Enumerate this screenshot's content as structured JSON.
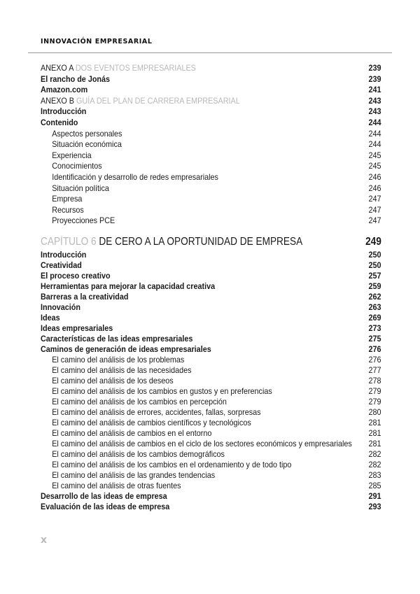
{
  "header": {
    "running_title": "INNOVACIÓN EMPRESARIAL"
  },
  "annexes": [
    {
      "prefix": "ANEXO A",
      "title": "DOS EVENTOS EMPRESARIALES",
      "page": "239"
    },
    {
      "prefix": "ANEXO B",
      "title": "GUÍA DEL PLAN DE CARRERA EMPRESARIAL",
      "page": "243"
    }
  ],
  "annex_a_entries": [
    {
      "label": "El rancho de Jonás",
      "page": "239",
      "level": 1
    },
    {
      "label": "Amazon.com",
      "page": "241",
      "level": 1
    }
  ],
  "annex_b_entries": [
    {
      "label": "Introducción",
      "page": "243",
      "level": 1
    },
    {
      "label": "Contenido",
      "page": "244",
      "level": 1
    },
    {
      "label": "Aspectos personales",
      "page": "244",
      "level": 2
    },
    {
      "label": "Situación económica",
      "page": "244",
      "level": 2
    },
    {
      "label": "Experiencia",
      "page": "245",
      "level": 2
    },
    {
      "label": "Conocimientos",
      "page": "245",
      "level": 2
    },
    {
      "label": "Identificación y desarrollo de redes empresariales",
      "page": "246",
      "level": 2
    },
    {
      "label": "Situación política",
      "page": "246",
      "level": 2
    },
    {
      "label": "Empresa",
      "page": "247",
      "level": 2
    },
    {
      "label": "Recursos",
      "page": "247",
      "level": 2
    },
    {
      "label": "Proyecciones PCE",
      "page": "247",
      "level": 2
    }
  ],
  "chapter": {
    "prefix": "CAPÍTULO 6",
    "title": "DE CERO A LA OPORTUNIDAD DE EMPRESA",
    "page": "249"
  },
  "chapter_entries": [
    {
      "label": "Introducción",
      "page": "250",
      "level": 1
    },
    {
      "label": "Creatividad",
      "page": "250",
      "level": 1
    },
    {
      "label": "El proceso creativo",
      "page": "257",
      "level": 1
    },
    {
      "label": "Herramientas para mejorar la capacidad creativa",
      "page": "259",
      "level": 1
    },
    {
      "label": "Barreras a la creatividad",
      "page": "262",
      "level": 1
    },
    {
      "label": "Innovación",
      "page": "263",
      "level": 1
    },
    {
      "label": "Ideas",
      "page": "269",
      "level": 1
    },
    {
      "label": "Ideas empresariales",
      "page": "273",
      "level": 1
    },
    {
      "label": "Características de las ideas empresariales",
      "page": "275",
      "level": 1
    },
    {
      "label": "Caminos de generación de ideas empresariales",
      "page": "276",
      "level": 1
    },
    {
      "label": "El camino del análisis de los problemas",
      "page": "276",
      "level": 2
    },
    {
      "label": "El camino del análisis de las necesidades",
      "page": "277",
      "level": 2
    },
    {
      "label": "El camino del análisis de los deseos",
      "page": "278",
      "level": 2
    },
    {
      "label": "El camino del análisis de los cambios en gustos y en preferencias",
      "page": "279",
      "level": 2
    },
    {
      "label": "El camino del análisis de los cambios en percepción",
      "page": "279",
      "level": 2
    },
    {
      "label": "El camino del análisis de errores, accidentes, fallas, sorpresas",
      "page": "280",
      "level": 2
    },
    {
      "label": "El camino del análisis de cambios científicos y tecnológicos",
      "page": "281",
      "level": 2
    },
    {
      "label": "El camino del análisis de cambios en el entorno",
      "page": "281",
      "level": 2
    },
    {
      "label": "El camino del análisis de cambios en el ciclo de los sectores económicos y empresariales",
      "page": "281",
      "level": 2
    },
    {
      "label": "El camino del análisis de los cambios demográficos",
      "page": "282",
      "level": 2
    },
    {
      "label": "El camino del análisis de los cambios en el ordenamiento y de todo tipo",
      "page": "282",
      "level": 2
    },
    {
      "label": "El camino del análisis de las grandes tendencias",
      "page": "283",
      "level": 2
    },
    {
      "label": "El camino del análisis de otras fuentes",
      "page": "285",
      "level": 2
    },
    {
      "label": "Desarrollo de las ideas de empresa",
      "page": "291",
      "level": 1
    },
    {
      "label": "Evaluación de las ideas de empresa",
      "page": "293",
      "level": 1
    }
  ],
  "footer": {
    "page_number": "x"
  }
}
